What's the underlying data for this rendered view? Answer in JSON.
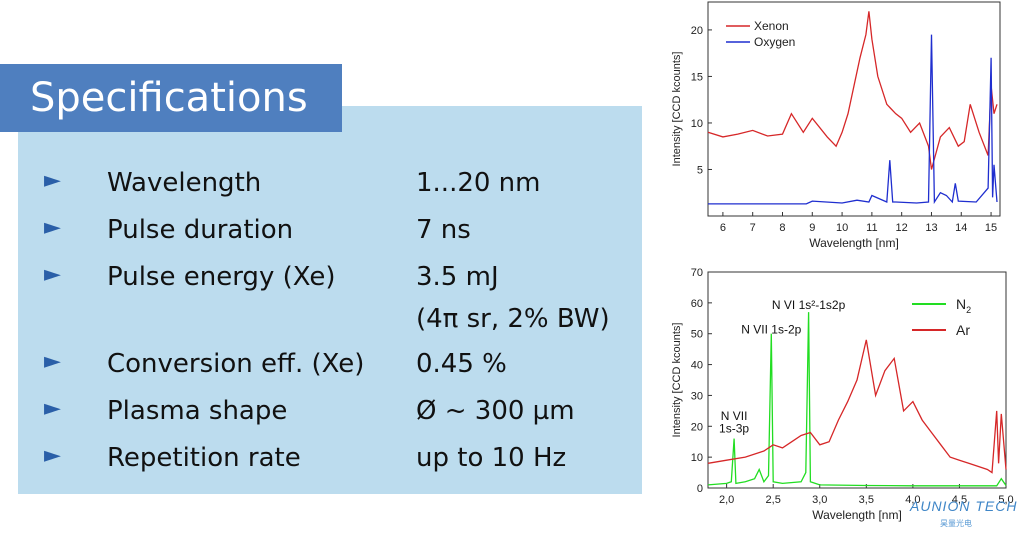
{
  "title": "Specifications",
  "specs": [
    {
      "label": "Wavelength",
      "value": "1...20 nm",
      "value2": ""
    },
    {
      "label": "Pulse duration",
      "value": "7 ns",
      "value2": ""
    },
    {
      "label": "Pulse energy (Xe)",
      "value": "3.5 mJ",
      "value2": "(4π sr, 2% BW)"
    },
    {
      "label": "Conversion eff. (Xe)",
      "value": "0.45 %",
      "value2": ""
    },
    {
      "label": "Plasma shape",
      "value": "Ø ~ 300 µm",
      "value2": ""
    },
    {
      "label": "Repetition rate",
      "value": "up to 10 Hz",
      "value2": ""
    }
  ],
  "bullet_glyph": "►",
  "logo": {
    "text": "AUNION TECH",
    "sub": "昊量光电"
  },
  "colors": {
    "title_bg": "#4f7fbf",
    "panel_bg": "#bcdcee",
    "xenon": "#d62728",
    "oxygen": "#1f2ecf",
    "n2": "#22dd22",
    "ar": "#d62728"
  },
  "chart_data": [
    {
      "type": "line",
      "xlabel": "Wavelength [nm]",
      "ylabel": "Intensity [CCD kcounts]",
      "xlim": [
        5.5,
        15.3
      ],
      "ylim": [
        0,
        23
      ],
      "xticks": [
        6,
        7,
        8,
        9,
        10,
        11,
        12,
        13,
        14,
        15
      ],
      "yticks": [
        5,
        10,
        15,
        20
      ],
      "legend_position": "top-left",
      "series": [
        {
          "name": "Xenon",
          "color": "#d62728",
          "x": [
            5.5,
            6.0,
            6.5,
            7.0,
            7.5,
            8.0,
            8.3,
            8.7,
            9.0,
            9.5,
            9.8,
            10.0,
            10.2,
            10.4,
            10.6,
            10.8,
            10.9,
            11.0,
            11.2,
            11.5,
            11.8,
            12.0,
            12.3,
            12.6,
            12.9,
            13.0,
            13.3,
            13.6,
            13.9,
            14.1,
            14.3,
            14.6,
            14.9,
            15.0,
            15.1,
            15.2
          ],
          "y": [
            9,
            8.5,
            8.8,
            9.2,
            8.6,
            8.8,
            11,
            9,
            10.5,
            8.5,
            7.5,
            9,
            11,
            14,
            17,
            19.5,
            22,
            19,
            15,
            12,
            11,
            10.5,
            9,
            10,
            7.5,
            5,
            8.5,
            9.5,
            7.5,
            8,
            12,
            9,
            6.5,
            14,
            11,
            12
          ]
        },
        {
          "name": "Oxygen",
          "color": "#1f2ecf",
          "x": [
            5.5,
            7,
            8.8,
            9,
            10,
            10.5,
            10.9,
            11,
            11.5,
            11.6,
            11.7,
            11.8,
            12.5,
            12.9,
            13.0,
            13.1,
            13.3,
            13.5,
            13.7,
            13.8,
            13.9,
            14.5,
            14.9,
            15.0,
            15.05,
            15.1,
            15.2
          ],
          "y": [
            1.3,
            1.3,
            1.3,
            1.6,
            1.4,
            1.7,
            1.5,
            2.2,
            1.5,
            6,
            1.5,
            1.5,
            1.4,
            1.5,
            19.5,
            1.5,
            2.5,
            2.2,
            1.5,
            3.5,
            1.6,
            1.5,
            3,
            17,
            2,
            5.5,
            1.5
          ]
        }
      ]
    },
    {
      "type": "line",
      "xlabel": "Wavelength [nm]",
      "ylabel": "Intensity [CCD kcounts]",
      "xlim": [
        1.8,
        5.0
      ],
      "ylim": [
        0,
        70
      ],
      "xticks": [
        "2,0",
        "2,5",
        "3,0",
        "3,5",
        "4,0",
        "4,5",
        "5,0"
      ],
      "xtick_values": [
        2.0,
        2.5,
        3.0,
        3.5,
        4.0,
        4.5,
        5.0
      ],
      "yticks": [
        0,
        10,
        20,
        30,
        40,
        50,
        60,
        70
      ],
      "legend_position": "top-right",
      "annotations": [
        {
          "text": "N VI 1s²-1s2p",
          "x": 2.88,
          "y": 58
        },
        {
          "text": "N VII 1s-2p",
          "x": 2.48,
          "y": 50
        },
        {
          "text": "N VII",
          "x": 2.08,
          "y": 22
        },
        {
          "text": "1s-3p",
          "x": 2.08,
          "y": 18
        }
      ],
      "series": [
        {
          "name": "N2",
          "legend_text": "N",
          "legend_sub": "2",
          "color": "#22dd22",
          "x": [
            1.8,
            2.0,
            2.05,
            2.08,
            2.1,
            2.2,
            2.3,
            2.35,
            2.4,
            2.45,
            2.48,
            2.5,
            2.6,
            2.8,
            2.85,
            2.88,
            2.9,
            3.0,
            3.5,
            4.0,
            4.5,
            4.9,
            4.95,
            5.0
          ],
          "y": [
            1,
            1.5,
            2,
            16,
            1.5,
            2,
            3,
            6,
            2,
            4,
            50,
            2,
            1.5,
            2,
            5,
            57,
            2,
            1,
            0.8,
            0.7,
            0.7,
            0.7,
            3,
            0.8
          ]
        },
        {
          "name": "Ar",
          "legend_text": "Ar",
          "color": "#d62728",
          "x": [
            1.8,
            2.0,
            2.2,
            2.4,
            2.5,
            2.6,
            2.7,
            2.8,
            2.9,
            3.0,
            3.1,
            3.2,
            3.3,
            3.4,
            3.5,
            3.6,
            3.7,
            3.8,
            3.9,
            4.0,
            4.1,
            4.2,
            4.3,
            4.4,
            4.5,
            4.6,
            4.7,
            4.8,
            4.85,
            4.9,
            4.92,
            4.95,
            5.0
          ],
          "y": [
            8,
            9,
            10,
            12,
            14,
            13,
            15,
            17,
            18,
            14,
            15,
            22,
            28,
            35,
            48,
            30,
            38,
            42,
            25,
            28,
            22,
            18,
            14,
            10,
            9,
            8,
            7,
            6,
            5,
            25,
            8,
            24,
            6
          ]
        }
      ]
    }
  ]
}
